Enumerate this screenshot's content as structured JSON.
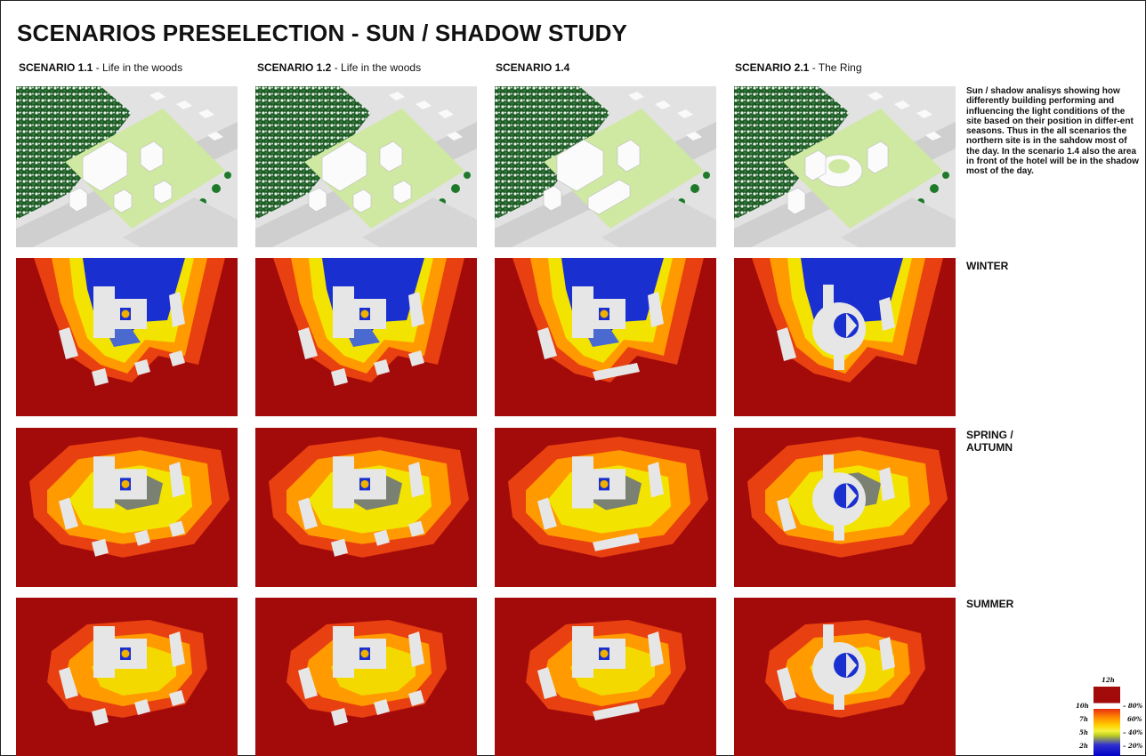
{
  "title": "SCENARIOS PRESELECTION - SUN / SHADOW STUDY",
  "scenarios": [
    {
      "id": "SCENARIO 1.1",
      "subtitle": " - Life in the woods"
    },
    {
      "id": "SCENARIO 1.2",
      "subtitle": " - Life in the woods"
    },
    {
      "id": "SCENARIO 1.4",
      "subtitle": ""
    },
    {
      "id": "SCENARIO 2.1",
      "subtitle": " - The Ring"
    }
  ],
  "description": "Sun / shadow analisys showing how differently building performing and influencing the light conditions of the site based on their position in differ-ent seasons. Thus in the all scenarios the northern site is in the sahdow most of the day. In the scenario 1.4 also the area in front of the hotel will be in the shadow most of the day.",
  "seasons": [
    "WINTER",
    "SPRING /\nAUTUMN",
    "SUMMER"
  ],
  "legend": {
    "top_label": "12h",
    "hours": [
      "10h",
      "7h",
      "5h",
      "2h"
    ],
    "percents": [
      "– 80%",
      "60%",
      "– 40%",
      "– 20%"
    ]
  },
  "colors": {
    "heatmap_bg": "#a30a0a",
    "shadow_blue": "#1a2fd0",
    "building": "#e6e6e6"
  }
}
